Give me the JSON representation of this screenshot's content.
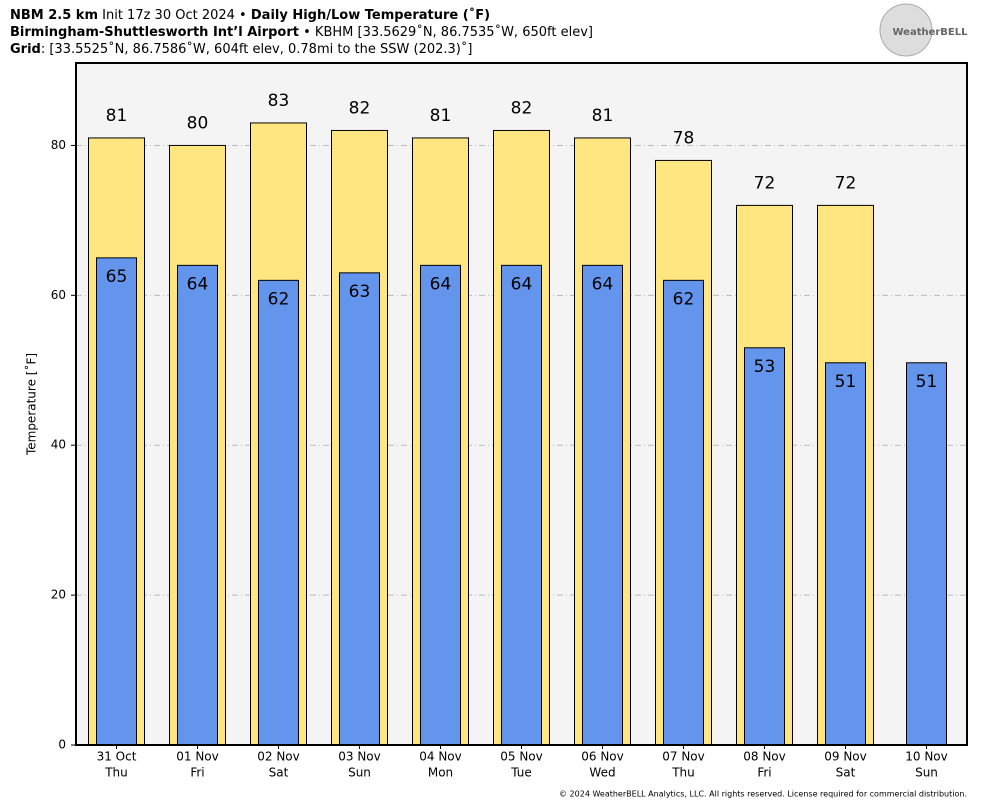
{
  "chart_data": {
    "type": "bar",
    "title": "NBM 2.5 km",
    "init": "Init 17z 30 Oct 2024 •",
    "subtitle": "Daily High/Low Temperature (˚F)",
    "station": "Birmingham-Shuttlesworth Int’l Airport",
    "station_info": "• KBHM [33.5629˚N, 86.7535˚W, 650ft elev]",
    "grid_label": "Grid",
    "grid_info": ": [33.5525˚N, 86.7586˚W, 604ft elev, 0.78mi to the SSW (202.3)˚]",
    "y_label": "Temperature [˚F]",
    "logo": "WeatherBELL",
    "footer": "© 2024 WeatherBELL Analytics, LLC. All rights reserved. License required for commercial distribution.",
    "categories": [
      "31 Oct",
      "01 Nov",
      "02 Nov",
      "03 Nov",
      "04 Nov",
      "05 Nov",
      "06 Nov",
      "07 Nov",
      "08 Nov",
      "09 Nov",
      "10 Nov"
    ],
    "weekdays": [
      "Thu",
      "Fri",
      "Sat",
      "Sun",
      "Mon",
      "Tue",
      "Wed",
      "Thu",
      "Fri",
      "Sat",
      "Sun"
    ],
    "series": [
      {
        "name": "High",
        "color": "#ffe680",
        "values": [
          81,
          80,
          83,
          82,
          81,
          82,
          81,
          78,
          72,
          72,
          null
        ]
      },
      {
        "name": "Low",
        "color": "#6495ed",
        "values": [
          65,
          64,
          62,
          63,
          64,
          64,
          64,
          62,
          53,
          51,
          51
        ]
      }
    ],
    "ylim": [
      0,
      91
    ],
    "yticks": [
      0,
      20,
      40,
      60,
      80
    ],
    "grid": true
  }
}
